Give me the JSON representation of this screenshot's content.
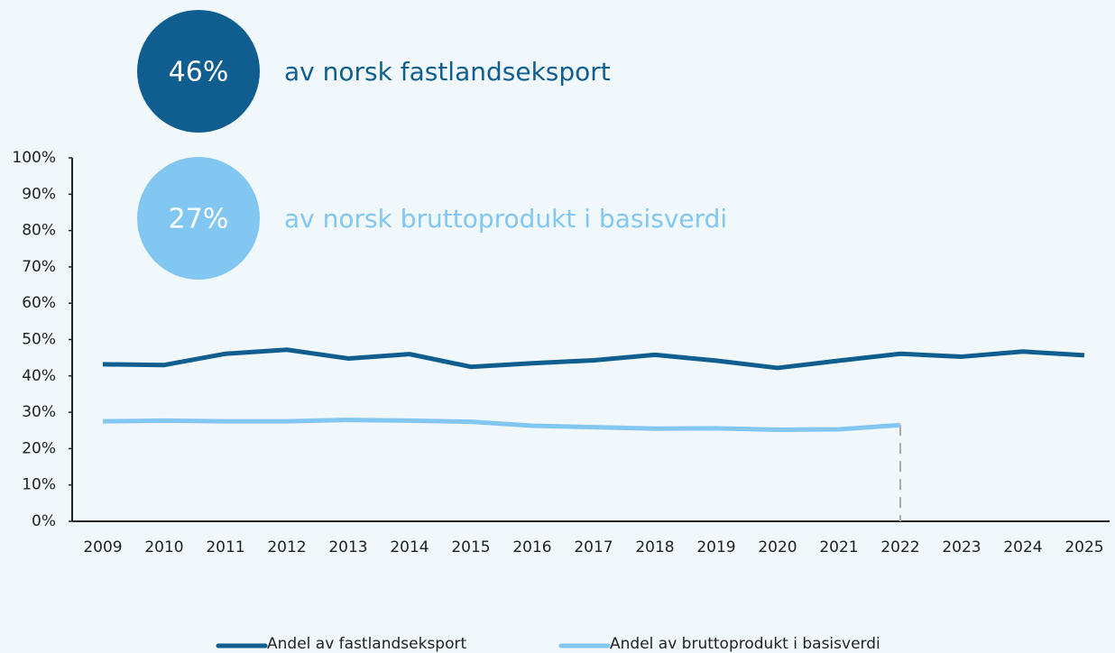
{
  "chart_data": {
    "type": "line",
    "categories": [
      "2009",
      "2010",
      "2011",
      "2012",
      "2013",
      "2014",
      "2015",
      "2016",
      "2017",
      "2018",
      "2019",
      "2020",
      "2021",
      "2022",
      "2023",
      "2024",
      "2025"
    ],
    "series": [
      {
        "name": "Andel av fastlandseksport",
        "color": "#0f5e8f",
        "values": [
          43.2,
          43.0,
          46.1,
          47.2,
          44.8,
          46.0,
          42.5,
          43.5,
          44.3,
          45.8,
          44.2,
          42.2,
          44.2,
          46.1,
          45.3,
          46.7,
          45.7
        ]
      },
      {
        "name": "Andel av bruttoprodukt i basisverdi",
        "color": "#82c6f2",
        "values": [
          27.5,
          27.7,
          27.5,
          27.5,
          27.9,
          27.7,
          27.4,
          26.3,
          25.9,
          25.5,
          25.6,
          25.2,
          25.3,
          26.5,
          null,
          null,
          null
        ]
      }
    ],
    "ylim": [
      0,
      100
    ],
    "yticks": [
      {
        "value": 0,
        "label": "0%"
      },
      {
        "value": 10,
        "label": "10%"
      },
      {
        "value": 20,
        "label": "20%"
      },
      {
        "value": 30,
        "label": "30%"
      },
      {
        "value": 40,
        "label": "40%"
      },
      {
        "value": 50,
        "label": "50%"
      },
      {
        "value": 60,
        "label": "60%"
      },
      {
        "value": 70,
        "label": "70%"
      },
      {
        "value": 80,
        "label": "80%"
      },
      {
        "value": 90,
        "label": "90%"
      },
      {
        "value": 100,
        "label": "100%"
      }
    ],
    "annotations": [
      {
        "label": "46%",
        "text": "av norsk fastlandseksport"
      },
      {
        "label": "27%",
        "text": "av norsk bruttoprodukt i basisverdi"
      }
    ],
    "legend": "bottom"
  }
}
